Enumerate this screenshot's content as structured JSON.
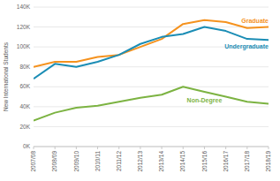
{
  "chart_data": {
    "type": "line",
    "y_label": "New International Students",
    "categories": [
      "2007/08",
      "2008/09",
      "2009/10",
      "2010/11",
      "2011/12",
      "2012/13",
      "2013/14",
      "2014/15",
      "2015/16",
      "2016/17",
      "2017/18",
      "2018/19"
    ],
    "series": [
      {
        "name": "Graduate",
        "color": "#f5921e",
        "values": [
          80000,
          85000,
          85000,
          90000,
          92000,
          100000,
          108000,
          123000,
          127000,
          125000,
          119000,
          120000
        ]
      },
      {
        "name": "Undergraduate",
        "color": "#1b8db5",
        "values": [
          68000,
          83000,
          80000,
          85000,
          92000,
          103000,
          110000,
          113000,
          120000,
          116000,
          108000,
          107000
        ]
      },
      {
        "name": "Non-Degree",
        "color": "#7cb342",
        "values": [
          26000,
          34000,
          39000,
          41000,
          45000,
          49000,
          52000,
          60000,
          55000,
          50000,
          45000,
          43000
        ]
      }
    ],
    "ylim": [
      0,
      140000
    ],
    "yticks": [
      {
        "value": 0,
        "label": "0K"
      },
      {
        "value": 20000,
        "label": "20K"
      },
      {
        "value": 40000,
        "label": "40K"
      },
      {
        "value": 60000,
        "label": "60K"
      },
      {
        "value": 80000,
        "label": "80K"
      },
      {
        "value": 100000,
        "label": "100K"
      },
      {
        "value": 120000,
        "label": "120K"
      },
      {
        "value": 140000,
        "label": "140K"
      }
    ],
    "grid": true
  }
}
